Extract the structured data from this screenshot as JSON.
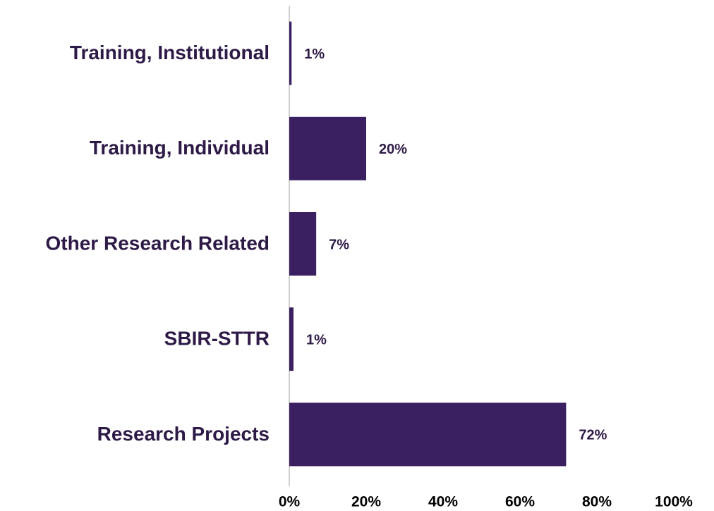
{
  "chart_data": {
    "type": "barh",
    "categories": [
      "Training, Institutional",
      "Training, Individual",
      "Other Research Related",
      "SBIR-STTR",
      "Research Projects"
    ],
    "values": [
      0.6,
      20,
      7,
      1.1,
      72
    ],
    "value_labels": [
      "1%",
      "20%",
      "7%",
      "1%",
      "72%"
    ],
    "color": "#3a2060",
    "xlim": [
      0,
      100
    ],
    "xticks": [
      {
        "value": 0,
        "label": "0%"
      },
      {
        "value": 20,
        "label": "20%"
      },
      {
        "value": 40,
        "label": "40%"
      },
      {
        "value": 60,
        "label": "60%"
      },
      {
        "value": 80,
        "label": "80%"
      },
      {
        "value": 100,
        "label": "100%"
      }
    ],
    "grid": false
  }
}
